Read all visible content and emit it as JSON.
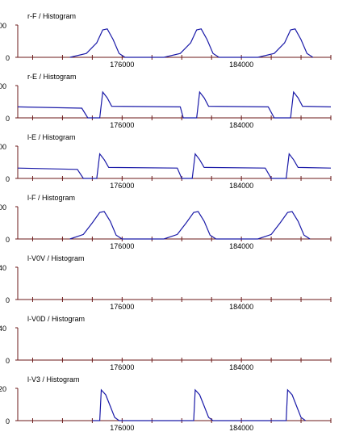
{
  "chart_data": [
    {
      "type": "line",
      "title": "r-F / Histogram",
      "y_tick_labels": [
        "0",
        "00"
      ],
      "x_tick_labels": [
        "176000",
        "184000"
      ],
      "shape": "bumps",
      "ylim": [
        0,
        100
      ],
      "values": [
        [
          172500,
          0
        ],
        [
          173600,
          12
        ],
        [
          174300,
          45
        ],
        [
          174700,
          85
        ],
        [
          175000,
          88
        ],
        [
          175400,
          55
        ],
        [
          175800,
          12
        ],
        [
          176200,
          0
        ],
        [
          178800,
          0
        ],
        [
          179900,
          12
        ],
        [
          180600,
          45
        ],
        [
          181000,
          85
        ],
        [
          181300,
          88
        ],
        [
          181700,
          55
        ],
        [
          182100,
          12
        ],
        [
          182500,
          0
        ],
        [
          185100,
          0
        ],
        [
          186200,
          12
        ],
        [
          186900,
          45
        ],
        [
          187300,
          85
        ],
        [
          187600,
          88
        ],
        [
          188000,
          55
        ],
        [
          188400,
          12
        ],
        [
          188800,
          0
        ]
      ]
    },
    {
      "type": "line",
      "title": "r-E / Histogram",
      "y_tick_labels": [
        "0",
        "00"
      ],
      "x_tick_labels": [
        "176000",
        "184000"
      ],
      "shape": "plateau",
      "ylim": [
        0,
        100
      ],
      "values": [
        [
          169000,
          34
        ],
        [
          173300,
          30
        ],
        [
          173700,
          0
        ],
        [
          174500,
          0
        ],
        [
          174700,
          80
        ],
        [
          175000,
          62
        ],
        [
          175300,
          36
        ],
        [
          179900,
          34
        ],
        [
          180100,
          0
        ],
        [
          181000,
          0
        ],
        [
          181200,
          80
        ],
        [
          181500,
          62
        ],
        [
          181800,
          36
        ],
        [
          185800,
          34
        ],
        [
          186200,
          0
        ],
        [
          187300,
          0
        ],
        [
          187500,
          80
        ],
        [
          187800,
          62
        ],
        [
          188100,
          36
        ],
        [
          190000,
          34
        ]
      ]
    },
    {
      "type": "line",
      "title": "l-E / Histogram",
      "y_tick_labels": [
        "0",
        "00"
      ],
      "x_tick_labels": [
        "176000",
        "184000"
      ],
      "shape": "plateau",
      "ylim": [
        0,
        100
      ],
      "values": [
        [
          169000,
          32
        ],
        [
          173000,
          28
        ],
        [
          173400,
          0
        ],
        [
          174300,
          0
        ],
        [
          174500,
          76
        ],
        [
          174800,
          58
        ],
        [
          175100,
          34
        ],
        [
          179700,
          32
        ],
        [
          180000,
          0
        ],
        [
          180700,
          0
        ],
        [
          180900,
          76
        ],
        [
          181200,
          58
        ],
        [
          181500,
          34
        ],
        [
          185600,
          32
        ],
        [
          186000,
          0
        ],
        [
          187000,
          0
        ],
        [
          187200,
          76
        ],
        [
          187500,
          58
        ],
        [
          187800,
          34
        ],
        [
          190000,
          32
        ]
      ]
    },
    {
      "type": "line",
      "title": "l-F / Histogram",
      "y_tick_labels": [
        "0",
        "00"
      ],
      "x_tick_labels": [
        "176000",
        "184000"
      ],
      "shape": "bumps",
      "ylim": [
        0,
        100
      ],
      "values": [
        [
          172500,
          0
        ],
        [
          173400,
          14
        ],
        [
          174000,
          50
        ],
        [
          174500,
          82
        ],
        [
          174800,
          85
        ],
        [
          175200,
          55
        ],
        [
          175600,
          12
        ],
        [
          176000,
          0
        ],
        [
          178800,
          0
        ],
        [
          179700,
          14
        ],
        [
          180300,
          50
        ],
        [
          180800,
          82
        ],
        [
          181100,
          85
        ],
        [
          181500,
          55
        ],
        [
          181900,
          12
        ],
        [
          182300,
          0
        ],
        [
          185100,
          0
        ],
        [
          186000,
          14
        ],
        [
          186600,
          50
        ],
        [
          187100,
          82
        ],
        [
          187400,
          85
        ],
        [
          187800,
          55
        ],
        [
          188200,
          12
        ],
        [
          188600,
          0
        ]
      ]
    },
    {
      "type": "line",
      "title": "l-V0V / Histogram",
      "y_tick_labels": [
        "0",
        "40"
      ],
      "x_tick_labels": [
        "176000",
        "184000"
      ],
      "shape": "flat",
      "ylim": [
        0,
        100
      ],
      "values": []
    },
    {
      "type": "line",
      "title": "l-V0D / Histogram",
      "y_tick_labels": [
        "0",
        "40"
      ],
      "x_tick_labels": [
        "176000",
        "184000"
      ],
      "shape": "flat",
      "ylim": [
        0,
        100
      ],
      "values": []
    },
    {
      "type": "line",
      "title": "l-V3 / Histogram",
      "y_tick_labels": [
        "0",
        "20"
      ],
      "x_tick_labels": [
        "176000",
        "184000"
      ],
      "shape": "spikes",
      "ylim": [
        0,
        100
      ],
      "values": [
        [
          174000,
          0
        ],
        [
          174500,
          0
        ],
        [
          174600,
          95
        ],
        [
          174900,
          80
        ],
        [
          175200,
          45
        ],
        [
          175500,
          10
        ],
        [
          175800,
          0
        ],
        [
          180800,
          0
        ],
        [
          180900,
          95
        ],
        [
          181200,
          80
        ],
        [
          181500,
          45
        ],
        [
          181800,
          10
        ],
        [
          182100,
          0
        ],
        [
          187000,
          0
        ],
        [
          187100,
          95
        ],
        [
          187400,
          80
        ],
        [
          187700,
          45
        ],
        [
          188000,
          10
        ],
        [
          188300,
          0
        ]
      ]
    }
  ],
  "axis": {
    "xlim": [
      169000,
      190000
    ],
    "x_ticks": [
      176000,
      184000
    ]
  },
  "colors": {
    "line": "#1a1aa8",
    "axis": "#6b1a1a",
    "text": "#000000"
  }
}
